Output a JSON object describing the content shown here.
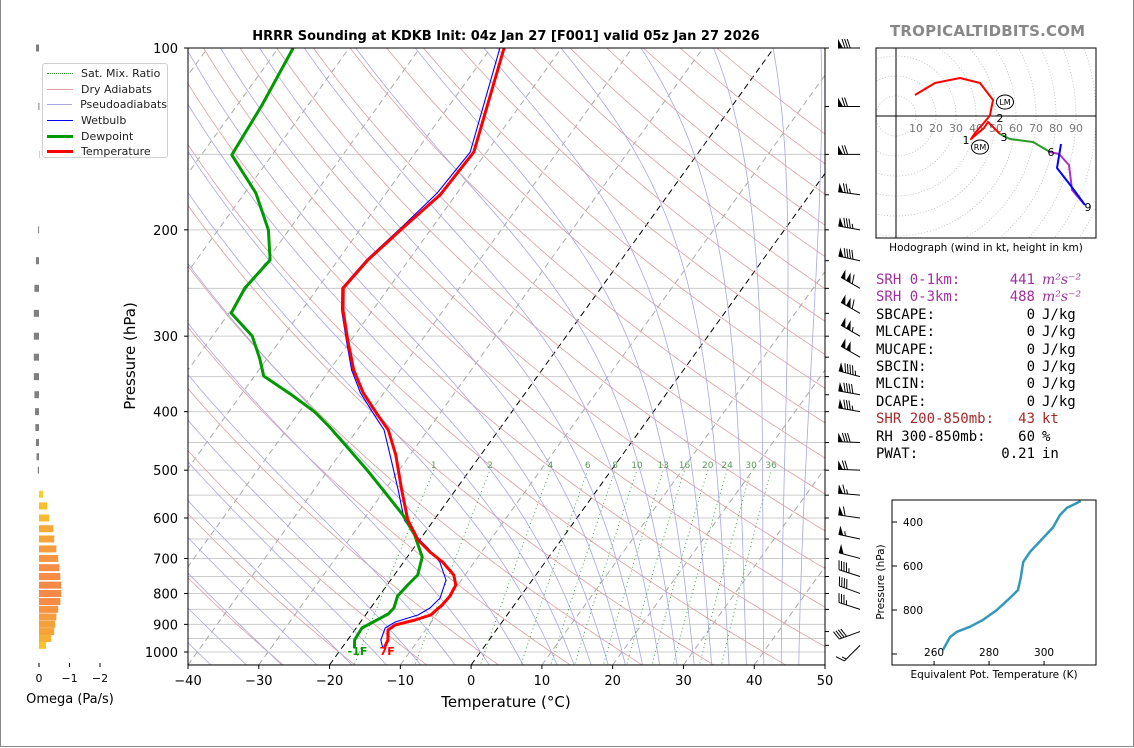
{
  "header": {
    "title": "HRRR Sounding at KDKB Init: 04z Jan 27 [F001] valid 05z Jan 27 2026",
    "watermark": "TROPICALTIDBITS.COM"
  },
  "legend": {
    "items": [
      {
        "label": "Sat. Mix. Ratio",
        "color": "#3a9a3a",
        "style": "dotted"
      },
      {
        "label": "Dry Adiabats",
        "color": "#d9a0a0",
        "style": "solid-thin"
      },
      {
        "label": "Pseudoadiabats",
        "color": "#a8a8e0",
        "style": "solid-thin"
      },
      {
        "label": "Wetbulb",
        "color": "#0000ff",
        "style": "solid"
      },
      {
        "label": "Dewpoint",
        "color": "#009900",
        "style": "thick"
      },
      {
        "label": "Temperature",
        "color": "#ff0000",
        "style": "thick"
      }
    ]
  },
  "indices": {
    "rows": [
      {
        "label": "SRH 0-1km:",
        "value": "441",
        "unit": "m²s⁻²",
        "color": "#a030a0",
        "italic_unit": true
      },
      {
        "label": "SRH 0-3km:",
        "value": "488",
        "unit": "m²s⁻²",
        "color": "#a030a0",
        "italic_unit": true
      },
      {
        "label": "SBCAPE:",
        "value": "0",
        "unit": "J/kg",
        "color": "#000000"
      },
      {
        "label": "MLCAPE:",
        "value": "0",
        "unit": "J/kg",
        "color": "#000000"
      },
      {
        "label": "MUCAPE:",
        "value": "0",
        "unit": "J/kg",
        "color": "#000000"
      },
      {
        "label": "SBCIN:",
        "value": "0",
        "unit": "J/kg",
        "color": "#000000"
      },
      {
        "label": "MLCIN:",
        "value": "0",
        "unit": "J/kg",
        "color": "#000000"
      },
      {
        "label": "DCAPE:",
        "value": "0",
        "unit": "J/kg",
        "color": "#000000"
      },
      {
        "label": "SHR 200-850mb:",
        "value": "43",
        "unit": "kt",
        "color": "#a52a2a"
      },
      {
        "label": "RH 300-850mb:",
        "value": "60",
        "unit": "%",
        "color": "#000000"
      },
      {
        "label": "PWAT:",
        "value": "0.21",
        "unit": "in",
        "color": "#000000"
      }
    ]
  },
  "chart_data": [
    {
      "id": "skewt",
      "type": "line",
      "title": "HRRR Sounding at KDKB Init: 04z Jan 27 [F001] valid 05z Jan 27 2026",
      "xlabel": "Temperature (°C)",
      "ylabel": "Pressure (hPa)",
      "xlim": [
        -40,
        50
      ],
      "ylim": [
        1050,
        100
      ],
      "yscale": "log",
      "grid": true,
      "legend": "upper-left",
      "xticks": [
        -40,
        -30,
        -20,
        -10,
        0,
        10,
        20,
        30,
        40,
        50
      ],
      "xtick_labels": [
        "−40",
        "−30",
        "−20",
        "−10",
        "0",
        "10",
        "20",
        "30",
        "40",
        "50"
      ],
      "yticks": [
        100,
        200,
        300,
        400,
        500,
        600,
        700,
        800,
        900,
        1000
      ],
      "ytick_labels": [
        "100",
        "200",
        "300",
        "400",
        "500",
        "600",
        "700",
        "800",
        "900",
        "1000"
      ],
      "highlighted_isotherms": [
        0,
        -20
      ],
      "mixing_ratio_labels": [
        "1",
        "2",
        "4",
        "6",
        "8",
        "10",
        "13",
        "16",
        "20",
        "24",
        "30",
        "36"
      ],
      "series": [
        {
          "name": "Temperature",
          "color": "#ff0000",
          "points": [
            [
              100,
              -58.1
            ],
            [
              148.7,
              -51.8
            ],
            [
              175.1,
              -52.2
            ],
            [
              197.1,
              -54.0
            ],
            [
              224.4,
              -55.8
            ],
            [
              249.7,
              -56.4
            ],
            [
              271.6,
              -54.2
            ],
            [
              304.3,
              -50.5
            ],
            [
              341.3,
              -46.6
            ],
            [
              372.6,
              -42.9
            ],
            [
              405.3,
              -38.6
            ],
            [
              429,
              -35.6
            ],
            [
              472,
              -32.0
            ],
            [
              539.3,
              -27.6
            ],
            [
              604.5,
              -23.7
            ],
            [
              652.5,
              -20.2
            ],
            [
              683.1,
              -17.3
            ],
            [
              709.6,
              -14.5
            ],
            [
              745.6,
              -11.6
            ],
            [
              774.6,
              -10.3
            ],
            [
              807.8,
              -10.0
            ],
            [
              836,
              -10.2
            ],
            [
              868.4,
              -10.8
            ],
            [
              885.2,
              -12.5
            ],
            [
              902.3,
              -14.8
            ],
            [
              919.6,
              -15.3
            ],
            [
              955.3,
              -14.3
            ],
            [
              985,
              -14.0
            ]
          ]
        },
        {
          "name": "Dewpoint",
          "color": "#009900",
          "points": [
            [
              100,
              -87.9
            ],
            [
              124.3,
              -86.5
            ],
            [
              150.3,
              -85.7
            ],
            [
              173.9,
              -78.4
            ],
            [
              200.1,
              -72.9
            ],
            [
              224.4,
              -69.6
            ],
            [
              249.7,
              -70.3
            ],
            [
              274.7,
              -69.7
            ],
            [
              299.8,
              -64.4
            ],
            [
              326.1,
              -61.1
            ],
            [
              349.2,
              -58.7
            ],
            [
              375.4,
              -52.8
            ],
            [
              400.7,
              -47.8
            ],
            [
              424.1,
              -44.2
            ],
            [
              463.1,
              -39.0
            ],
            [
              500,
              -34.5
            ],
            [
              543.4,
              -29.8
            ],
            [
              593.2,
              -24.9
            ],
            [
              640.2,
              -21.2
            ],
            [
              696.2,
              -17.9
            ],
            [
              745.6,
              -16.7
            ],
            [
              774.6,
              -17.1
            ],
            [
              807.8,
              -17.4
            ],
            [
              845.7,
              -16.7
            ],
            [
              865.1,
              -16.9
            ],
            [
              912.6,
              -19.2
            ],
            [
              955.3,
              -19.0
            ],
            [
              985,
              -18.2
            ]
          ]
        },
        {
          "name": "Wetbulb",
          "color": "#0000ff",
          "points": [
            [
              100,
              -58.7
            ],
            [
              148.7,
              -52.3
            ],
            [
              173.9,
              -52.8
            ],
            [
              197.1,
              -54.3
            ],
            [
              224.4,
              -56.0
            ],
            [
              249.7,
              -56.6
            ],
            [
              271.6,
              -54.4
            ],
            [
              304.3,
              -50.7
            ],
            [
              341.3,
              -46.9
            ],
            [
              372.6,
              -43.3
            ],
            [
              405.3,
              -39.1
            ],
            [
              429,
              -36.2
            ],
            [
              472,
              -32.8
            ],
            [
              539.3,
              -28.1
            ],
            [
              604.5,
              -24.2
            ],
            [
              640.2,
              -21.2
            ],
            [
              672.8,
              -18.0
            ],
            [
              709.6,
              -14.9
            ],
            [
              759.9,
              -12.2
            ],
            [
              814,
              -11.2
            ],
            [
              845.7,
              -11.6
            ],
            [
              868.4,
              -12.6
            ],
            [
              892,
              -15.1
            ],
            [
              912.6,
              -15.9
            ],
            [
              955.3,
              -15.3
            ],
            [
              985,
              -14.2
            ]
          ]
        }
      ],
      "surface_labels": {
        "dewpoint": "-1F",
        "temperature": "7F"
      },
      "wind_barbs": [
        {
          "p": 100,
          "speed_kt": 80,
          "dir_deg": 270
        },
        {
          "p": 125,
          "speed_kt": 70,
          "dir_deg": 270
        },
        {
          "p": 150,
          "speed_kt": 70,
          "dir_deg": 270
        },
        {
          "p": 175,
          "speed_kt": 75,
          "dir_deg": 278
        },
        {
          "p": 200,
          "speed_kt": 85,
          "dir_deg": 280
        },
        {
          "p": 225,
          "speed_kt": 90,
          "dir_deg": 282
        },
        {
          "p": 250,
          "speed_kt": 110,
          "dir_deg": 300
        },
        {
          "p": 275,
          "speed_kt": 110,
          "dir_deg": 300
        },
        {
          "p": 300,
          "speed_kt": 105,
          "dir_deg": 300
        },
        {
          "p": 325,
          "speed_kt": 100,
          "dir_deg": 300
        },
        {
          "p": 350,
          "speed_kt": 95,
          "dir_deg": 285
        },
        {
          "p": 375,
          "speed_kt": 90,
          "dir_deg": 280
        },
        {
          "p": 400,
          "speed_kt": 85,
          "dir_deg": 280
        },
        {
          "p": 450,
          "speed_kt": 80,
          "dir_deg": 272
        },
        {
          "p": 500,
          "speed_kt": 70,
          "dir_deg": 272
        },
        {
          "p": 550,
          "speed_kt": 65,
          "dir_deg": 275
        },
        {
          "p": 600,
          "speed_kt": 60,
          "dir_deg": 278
        },
        {
          "p": 650,
          "speed_kt": 55,
          "dir_deg": 282
        },
        {
          "p": 700,
          "speed_kt": 50,
          "dir_deg": 285
        },
        {
          "p": 750,
          "speed_kt": 45,
          "dir_deg": 288
        },
        {
          "p": 800,
          "speed_kt": 40,
          "dir_deg": 290
        },
        {
          "p": 850,
          "speed_kt": 35,
          "dir_deg": 288
        },
        {
          "p": 925,
          "speed_kt": 40,
          "dir_deg": 250
        },
        {
          "p": 975,
          "speed_kt": 15,
          "dir_deg": 225
        }
      ]
    },
    {
      "id": "hodograph",
      "type": "line",
      "title": "Hodograph (wind in kt, height in km)",
      "ring_labels": [
        "10",
        "20",
        "30",
        "40",
        "50",
        "60",
        "70",
        "80",
        "90"
      ],
      "segments": [
        {
          "layer_km": "0-3",
          "color": "#ff0000",
          "points": [
            [
              9.5,
              10.5
            ],
            [
              19.5,
              16.5
            ],
            [
              32,
              19
            ],
            [
              42,
              16.5
            ],
            [
              48.5,
              8
            ],
            [
              47,
              0.5
            ],
            [
              46,
              -1
            ],
            [
              39.5,
              -8.5
            ],
            [
              37.5,
              -11.5
            ],
            [
              41,
              -8.5
            ],
            [
              44,
              -6
            ],
            [
              46,
              -3
            ],
            [
              52,
              -9
            ]
          ]
        },
        {
          "layer_km": "3-6",
          "color": "#2a9a2a",
          "points": [
            [
              52,
              -9
            ],
            [
              57,
              -11.5
            ],
            [
              64.5,
              -12.5
            ],
            [
              68.5,
              -13
            ],
            [
              77,
              -18
            ]
          ]
        },
        {
          "layer_km": "6-9",
          "color": "#b030c0",
          "points": [
            [
              77,
              -18
            ],
            [
              81.5,
              -19
            ],
            [
              86.5,
              -24.5
            ],
            [
              88,
              -37
            ],
            [
              94,
              -44
            ]
          ]
        },
        {
          "layer_km": "9+",
          "color": "#0000ff",
          "points": [
            [
              82.5,
              -14
            ],
            [
              80.5,
              -26
            ],
            [
              87.5,
              -35
            ],
            [
              94.5,
              -44.5
            ]
          ]
        }
      ],
      "height_labels": [
        {
          "label": "1",
          "u": 43.5,
          "v": -7
        },
        {
          "label": "2",
          "u": 45,
          "v": -2.5
        },
        {
          "label": "3",
          "u": 54,
          "v": -10.5
        },
        {
          "label": "6",
          "u": 77.5,
          "v": -18
        },
        {
          "label": "9",
          "u": 96,
          "v": -45.5
        }
      ],
      "storm_motion": [
        {
          "label": "LM",
          "u": 54.5,
          "v": 7
        },
        {
          "label": "RM",
          "u": 42,
          "v": -15.5
        }
      ]
    },
    {
      "id": "theta-e",
      "type": "line",
      "xlabel": "Equivalent Pot. Temperature (K)",
      "ylabel": "Pressure (hPa)",
      "xlim": [
        244.7,
        318.9
      ],
      "ylim": [
        1050,
        300
      ],
      "xticks": [
        260,
        280,
        300
      ],
      "xtick_labels": [
        "260",
        "280",
        "300"
      ],
      "yticks": [
        400,
        600,
        800,
        1000
      ],
      "ytick_labels": [
        "400",
        "600",
        "800",
        ""
      ],
      "color": "#3399bb",
      "points": [
        [
          982,
          263.2
        ],
        [
          923,
          265.8
        ],
        [
          899,
          268.3
        ],
        [
          876,
          273.1
        ],
        [
          845,
          277.8
        ],
        [
          800,
          282.8
        ],
        [
          745,
          287.6
        ],
        [
          709,
          290.5
        ],
        [
          655,
          291.5
        ],
        [
          582,
          292.4
        ],
        [
          536,
          294.9
        ],
        [
          473,
          299.6
        ],
        [
          423,
          303.3
        ],
        [
          368,
          305.8
        ],
        [
          336,
          308.3
        ],
        [
          305,
          313.3
        ]
      ]
    },
    {
      "id": "omega",
      "type": "bar",
      "xlabel": "Omega (Pa/s)",
      "xticks": [
        0,
        -1,
        -2
      ],
      "xtick_labels": [
        "0",
        "−1",
        "−2"
      ],
      "x_reversed": true,
      "colors": {
        "positive": "#808080",
        "negative_low": "#f7e11c",
        "negative_high": "#f68848"
      },
      "bars": [
        [
          100,
          0.1
        ],
        [
          125,
          0.02
        ],
        [
          150,
          -0.02
        ],
        [
          200,
          0.03
        ],
        [
          225,
          0.1
        ],
        [
          250,
          0.15
        ],
        [
          275,
          0.17
        ],
        [
          300,
          0.17
        ],
        [
          325,
          0.17
        ],
        [
          350,
          0.17
        ],
        [
          375,
          0.15
        ],
        [
          400,
          0.13
        ],
        [
          425,
          0.12
        ],
        [
          450,
          0.1
        ],
        [
          475,
          0.08
        ],
        [
          500,
          0.04
        ],
        [
          548,
          -0.13
        ],
        [
          573,
          -0.27
        ],
        [
          600,
          -0.33
        ],
        [
          625,
          -0.47
        ],
        [
          650,
          -0.5
        ],
        [
          675,
          -0.57
        ],
        [
          700,
          -0.63
        ],
        [
          725,
          -0.67
        ],
        [
          750,
          -0.7
        ],
        [
          775,
          -0.73
        ],
        [
          800,
          -0.73
        ],
        [
          825,
          -0.7
        ],
        [
          850,
          -0.63
        ],
        [
          875,
          -0.57
        ],
        [
          900,
          -0.53
        ],
        [
          925,
          -0.5
        ],
        [
          950,
          -0.4
        ],
        [
          975,
          -0.23
        ]
      ]
    }
  ]
}
